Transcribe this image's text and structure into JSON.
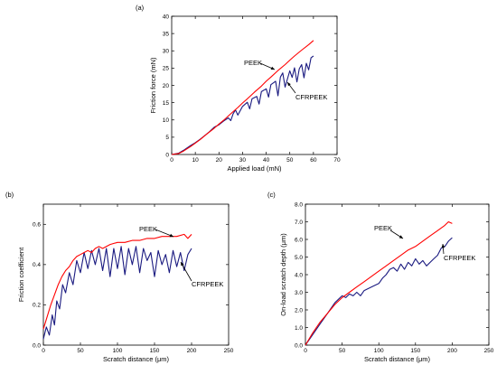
{
  "chart_data": [
    {
      "type": "line",
      "panel_label": "(a)",
      "xlabel": "Applied load (mN)",
      "ylabel": "Friction force (mN)",
      "xlim": [
        0,
        70
      ],
      "ylim": [
        0,
        40
      ],
      "xticks": [
        0,
        10,
        20,
        30,
        40,
        50,
        60,
        70
      ],
      "yticks": [
        0,
        5,
        10,
        15,
        20,
        25,
        30,
        35,
        40
      ],
      "series": [
        {
          "name": "PEEK",
          "color": "#ff0000",
          "x": [
            0,
            3,
            5,
            8,
            10,
            12,
            15,
            18,
            20,
            22,
            25,
            28,
            30,
            32,
            35,
            38,
            40,
            42,
            45,
            48,
            50,
            52,
            55,
            58,
            60
          ],
          "y": [
            0,
            0.3,
            1.0,
            2.3,
            3.3,
            4.3,
            6.0,
            7.6,
            8.8,
            9.9,
            11.8,
            13.6,
            14.9,
            16.1,
            18.0,
            19.8,
            21.2,
            22.4,
            24.3,
            26.0,
            27.3,
            28.5,
            30.2,
            31.8,
            33.0
          ]
        },
        {
          "name": "CFRPEEK",
          "color": "#1a1a80",
          "x": [
            0,
            3,
            5,
            8,
            10,
            12,
            14,
            16,
            18,
            20,
            22,
            24,
            25,
            26,
            27,
            28,
            30,
            32,
            33,
            34,
            36,
            37,
            38,
            40,
            41,
            42,
            44,
            45,
            46,
            47,
            48,
            50,
            51,
            52,
            53,
            54,
            55,
            56,
            57,
            58,
            59,
            60
          ],
          "y": [
            0,
            0.4,
            1.2,
            2.6,
            3.4,
            4.4,
            5.5,
            6.6,
            7.9,
            8.6,
            9.7,
            10.6,
            9.8,
            11.8,
            12.9,
            11.4,
            13.9,
            15.1,
            13.2,
            16.1,
            16.8,
            14.6,
            18.2,
            19.0,
            16.6,
            20.2,
            21.2,
            17.0,
            22.4,
            23.6,
            19.5,
            24.2,
            22.3,
            25.1,
            21.0,
            24.8,
            26.0,
            22.2,
            26.4,
            24.5,
            28.0,
            28.5
          ]
        }
      ],
      "annotations": [
        "PEEK",
        "CFRPEEK"
      ]
    },
    {
      "type": "line",
      "panel_label": "(b)",
      "xlabel": "Scratch distance (μm)",
      "ylabel": "Friction coefficient",
      "xlim": [
        0,
        250
      ],
      "ylim": [
        0,
        0.7
      ],
      "xticks": [
        0,
        50,
        100,
        150,
        200,
        250
      ],
      "yticks": [
        0.0,
        0.2,
        0.4,
        0.6
      ],
      "series": [
        {
          "name": "PEEK",
          "color": "#ff0000",
          "x": [
            0,
            5,
            10,
            15,
            20,
            25,
            30,
            35,
            40,
            45,
            50,
            55,
            60,
            65,
            70,
            75,
            80,
            90,
            100,
            110,
            120,
            130,
            140,
            150,
            160,
            170,
            180,
            190,
            195,
            200
          ],
          "y": [
            0.08,
            0.14,
            0.2,
            0.25,
            0.3,
            0.34,
            0.37,
            0.39,
            0.42,
            0.44,
            0.45,
            0.46,
            0.47,
            0.46,
            0.48,
            0.49,
            0.48,
            0.5,
            0.51,
            0.51,
            0.52,
            0.52,
            0.53,
            0.53,
            0.54,
            0.54,
            0.54,
            0.55,
            0.53,
            0.55
          ]
        },
        {
          "name": "CFRPEEK",
          "color": "#1a1a80",
          "x": [
            0,
            4,
            8,
            12,
            15,
            18,
            22,
            26,
            30,
            35,
            40,
            45,
            50,
            55,
            60,
            65,
            70,
            75,
            80,
            85,
            90,
            95,
            100,
            105,
            110,
            115,
            120,
            125,
            130,
            135,
            140,
            145,
            150,
            155,
            160,
            165,
            170,
            175,
            180,
            185,
            190,
            195,
            200
          ],
          "y": [
            0.03,
            0.09,
            0.05,
            0.15,
            0.1,
            0.22,
            0.18,
            0.3,
            0.26,
            0.36,
            0.3,
            0.42,
            0.36,
            0.46,
            0.38,
            0.47,
            0.4,
            0.48,
            0.37,
            0.48,
            0.34,
            0.48,
            0.38,
            0.49,
            0.35,
            0.48,
            0.4,
            0.49,
            0.36,
            0.48,
            0.42,
            0.46,
            0.34,
            0.47,
            0.4,
            0.45,
            0.36,
            0.47,
            0.39,
            0.46,
            0.37,
            0.45,
            0.48
          ]
        }
      ],
      "annotations": [
        "PEEK",
        "CFRPEEK"
      ]
    },
    {
      "type": "line",
      "panel_label": "(c)",
      "xlabel": "Scratch distance (μm)",
      "ylabel": "On-load scratch depth (μm)",
      "xlim": [
        0,
        250
      ],
      "ylim": [
        0,
        8.0
      ],
      "xticks": [
        0,
        50,
        100,
        150,
        200,
        250
      ],
      "yticks": [
        0.0,
        1.0,
        2.0,
        3.0,
        4.0,
        5.0,
        6.0,
        7.0,
        8.0
      ],
      "series": [
        {
          "name": "PEEK",
          "color": "#ff0000",
          "x": [
            0,
            10,
            20,
            30,
            40,
            50,
            60,
            70,
            80,
            90,
            100,
            110,
            120,
            130,
            140,
            150,
            160,
            170,
            180,
            190,
            195,
            200
          ],
          "y": [
            0,
            0.7,
            1.3,
            1.8,
            2.3,
            2.7,
            3.0,
            3.3,
            3.6,
            3.9,
            4.2,
            4.5,
            4.8,
            5.1,
            5.4,
            5.6,
            5.9,
            6.2,
            6.5,
            6.8,
            7.0,
            6.9
          ]
        },
        {
          "name": "CFRPEEK",
          "color": "#1a1a80",
          "x": [
            0,
            10,
            20,
            30,
            40,
            45,
            50,
            55,
            60,
            65,
            70,
            75,
            80,
            90,
            100,
            105,
            110,
            115,
            120,
            125,
            130,
            135,
            140,
            145,
            150,
            155,
            160,
            165,
            170,
            175,
            180,
            185,
            190,
            195,
            200
          ],
          "y": [
            0,
            0.6,
            1.2,
            1.8,
            2.4,
            2.6,
            2.8,
            2.7,
            2.9,
            2.8,
            3.0,
            2.8,
            3.1,
            3.3,
            3.5,
            3.8,
            4.0,
            4.3,
            4.4,
            4.2,
            4.6,
            4.3,
            4.7,
            4.5,
            4.9,
            4.6,
            4.8,
            4.5,
            4.7,
            4.9,
            5.1,
            5.5,
            5.6,
            5.9,
            6.1
          ]
        }
      ],
      "annotations": [
        "PEEK",
        "CFRPEEK"
      ]
    }
  ]
}
